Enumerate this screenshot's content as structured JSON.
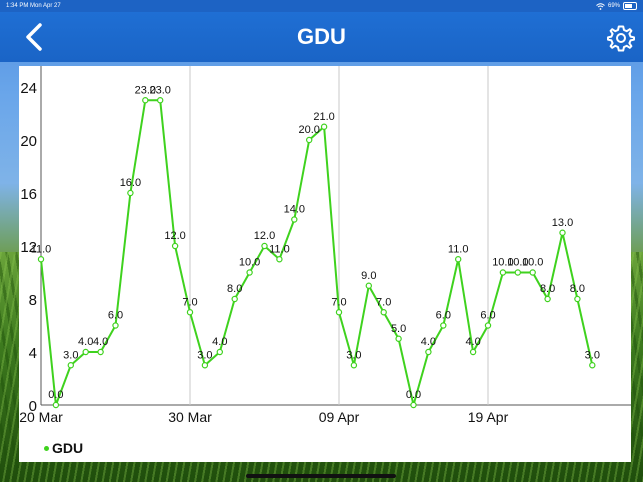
{
  "status_bar": {
    "time": "1:34 PM",
    "date": "Mon Apr 27",
    "battery": "69%",
    "icons": [
      "wifi-icon",
      "battery-icon"
    ]
  },
  "nav": {
    "title": "GDU",
    "back_icon": "chevron-left-icon",
    "settings_icon": "gear-icon"
  },
  "legend": {
    "label": "GDU"
  },
  "colors": {
    "navbar": "#1a64c6",
    "series": "#3fd21e",
    "grid": "#c8c8c8"
  },
  "chart_data": {
    "type": "line",
    "ylim": [
      0,
      24
    ],
    "yticks": [
      0,
      4,
      8,
      12,
      16,
      20,
      24
    ],
    "x_tick_labels": [
      "20 Mar",
      "30 Mar",
      "09 Apr",
      "19 Apr"
    ],
    "x_tick_indices": [
      0,
      10,
      20,
      30
    ],
    "vertical_grid": true,
    "legend_placement": "bottom-left",
    "series": [
      {
        "name": "GDU",
        "values": [
          11,
          0,
          3,
          4,
          4,
          6,
          16,
          23,
          23,
          12,
          7,
          3,
          4,
          8,
          10,
          12,
          11,
          14,
          20,
          21,
          7,
          3,
          9,
          7,
          5,
          0,
          4,
          6,
          11,
          4,
          6,
          10,
          10,
          10,
          8,
          13,
          8,
          3
        ],
        "labels": [
          "11.0",
          "0.0",
          "3.0",
          "4.0",
          "4.0",
          "6.0",
          "16.0",
          "23.0",
          "23.0",
          "12.0",
          "7.0",
          "3.0",
          "4.0",
          "8.0",
          "10.0",
          "12.0",
          "11.0",
          "14.0",
          "20.0",
          "21.0",
          "7.0",
          "3.0",
          "9.0",
          "7.0",
          "5.0",
          "0.0",
          "4.0",
          "6.0",
          "11.0",
          "4.0",
          "6.0",
          "10.0",
          "10.0",
          "10.0",
          "8.0",
          "13.0",
          "8.0",
          "3.0"
        ]
      }
    ]
  }
}
